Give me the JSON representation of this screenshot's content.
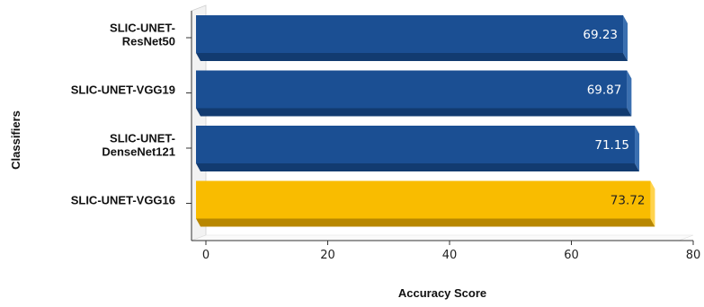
{
  "chart_data": {
    "type": "bar",
    "orientation": "horizontal",
    "categories": [
      [
        "SLIC-UNET-",
        "ResNet50"
      ],
      [
        "SLIC-UNET-VGG19"
      ],
      [
        "SLIC-UNET-",
        "DenseNet121"
      ],
      [
        "SLIC-UNET-VGG16"
      ]
    ],
    "values": [
      69.23,
      69.87,
      71.15,
      73.72
    ],
    "data_labels": [
      "69.23",
      "69.87",
      "71.15",
      "73.72"
    ],
    "xlabel": "Accuracy Score",
    "ylabel": "Classifiers",
    "xlim": [
      0,
      80
    ],
    "x_ticks": [
      "0",
      "20",
      "40",
      "60",
      "80"
    ],
    "grid": false,
    "legend": "none",
    "colors": {
      "default_bar": "#1b4f93",
      "default_bar_dark": "#123b70",
      "default_bar_side": "#3a6fb0",
      "highlight_bar": "#f9bc00",
      "highlight_bar_dark": "#b88700",
      "highlight_bar_side": "#ffd34d",
      "label_on_default": "#ffffff",
      "label_on_highlight": "#222222"
    },
    "highlight_index": 3
  }
}
